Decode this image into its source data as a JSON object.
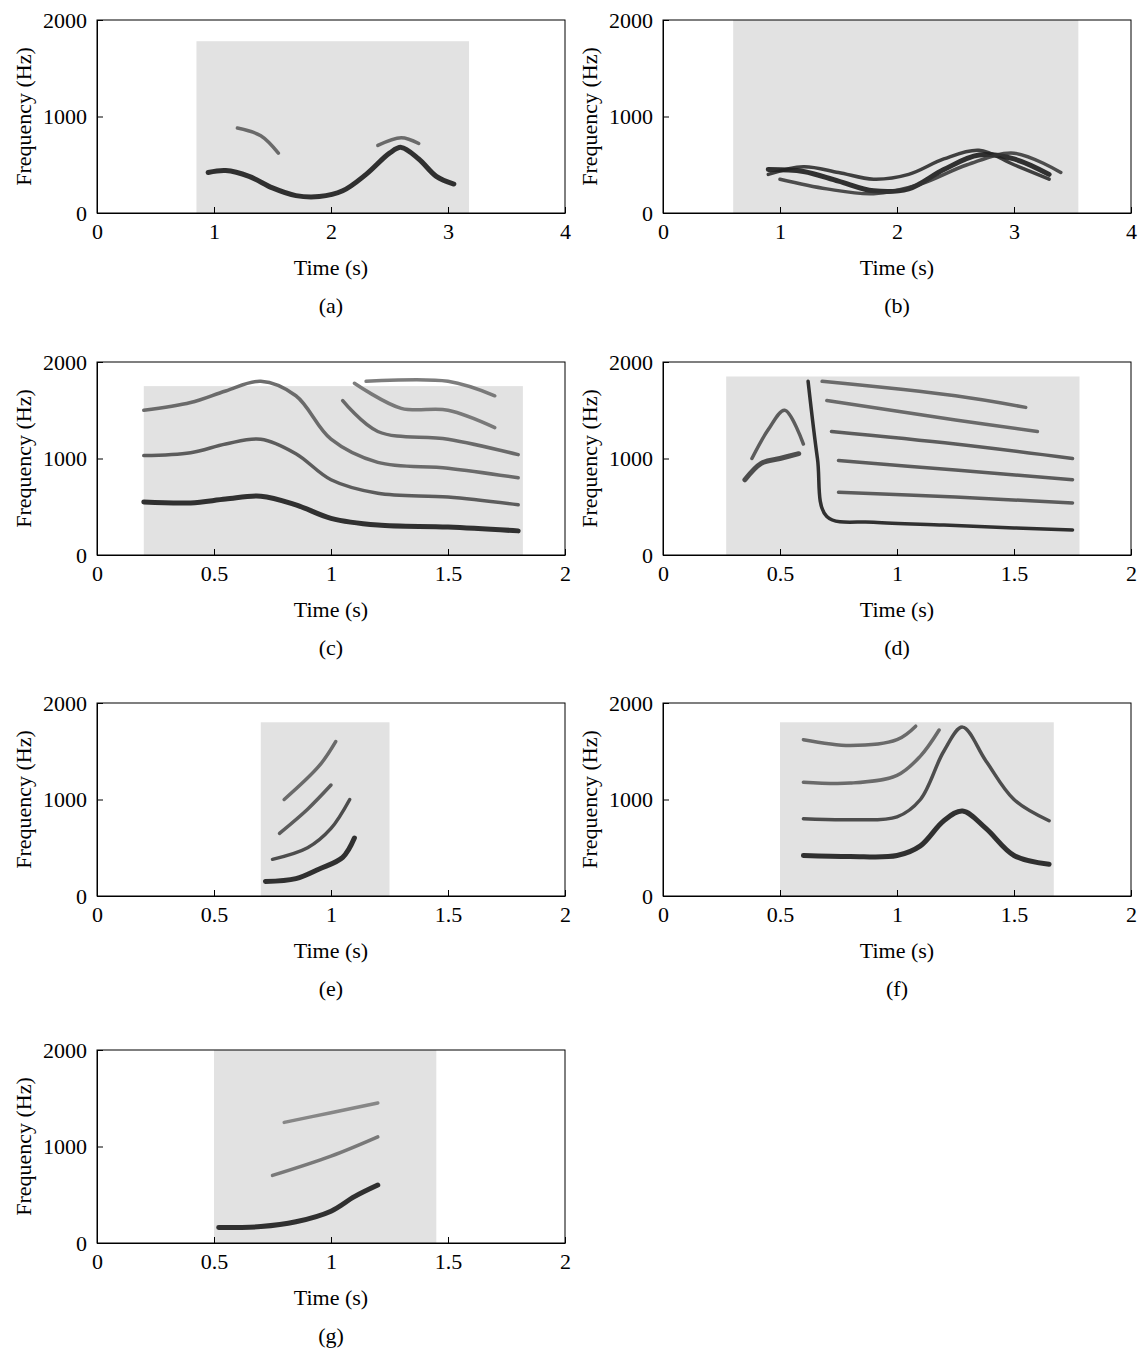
{
  "chart_data": [
    {
      "type": "spectrogram",
      "caption": "(a)",
      "x_label": "Time (s)",
      "y_label": "Frequency (Hz)",
      "xlim": [
        0,
        4
      ],
      "xticks": [
        0,
        1,
        2,
        3,
        4
      ],
      "ylim": [
        0,
        2000
      ],
      "yticks": [
        0,
        1000,
        2000
      ],
      "region": {
        "x": [
          0.85,
          3.18
        ],
        "y": [
          0,
          1780
        ]
      },
      "series": [
        {
          "color": "#111111",
          "x": [
            0.95,
            1.1,
            1.3,
            1.5,
            1.7,
            1.9,
            2.1,
            2.3,
            2.5,
            2.6,
            2.75,
            2.9,
            3.05
          ],
          "values": [
            420,
            440,
            380,
            260,
            180,
            170,
            230,
            400,
            620,
            680,
            560,
            380,
            300
          ]
        },
        {
          "color": "#555555",
          "x": [
            1.2,
            1.4,
            1.55
          ],
          "values": [
            880,
            800,
            620
          ]
        },
        {
          "color": "#555555",
          "x": [
            2.4,
            2.6,
            2.75
          ],
          "values": [
            700,
            780,
            720
          ]
        }
      ]
    },
    {
      "type": "spectrogram",
      "caption": "(b)",
      "x_label": "Time (s)",
      "y_label": "Frequency (Hz)",
      "xlim": [
        0,
        4
      ],
      "xticks": [
        0,
        1,
        2,
        3,
        4
      ],
      "ylim": [
        0,
        2000
      ],
      "yticks": [
        0,
        1000,
        2000
      ],
      "region": {
        "x": [
          0.6,
          3.55
        ],
        "y": [
          0,
          2000
        ]
      },
      "series": [
        {
          "color": "#111111",
          "x": [
            0.9,
            1.2,
            1.5,
            1.8,
            2.1,
            2.4,
            2.7,
            3.0,
            3.3
          ],
          "values": [
            450,
            430,
            330,
            230,
            250,
            450,
            600,
            560,
            400
          ]
        },
        {
          "color": "#222222",
          "x": [
            0.9,
            1.2,
            1.5,
            1.8,
            2.1,
            2.4,
            2.7,
            3.0,
            3.3
          ],
          "values": [
            400,
            480,
            420,
            350,
            400,
            560,
            650,
            500,
            350
          ]
        },
        {
          "color": "#333333",
          "x": [
            1.0,
            1.4,
            1.8,
            2.2,
            2.6,
            3.0,
            3.4
          ],
          "values": [
            350,
            250,
            200,
            300,
            500,
            620,
            420
          ]
        }
      ]
    },
    {
      "type": "spectrogram",
      "caption": "(c)",
      "x_label": "Time (s)",
      "y_label": "Frequency (Hz)",
      "xlim": [
        0,
        2
      ],
      "xticks": [
        0,
        0.5,
        1,
        1.5,
        2
      ],
      "ylim": [
        0,
        2000
      ],
      "yticks": [
        0,
        1000,
        2000
      ],
      "region": {
        "x": [
          0.2,
          1.82
        ],
        "y": [
          0,
          1750
        ]
      },
      "series": [
        {
          "color": "#111111",
          "x": [
            0.2,
            0.4,
            0.55,
            0.7,
            0.85,
            1.0,
            1.2,
            1.5,
            1.8
          ],
          "values": [
            550,
            540,
            580,
            610,
            520,
            380,
            310,
            290,
            250
          ]
        },
        {
          "color": "#444444",
          "x": [
            0.2,
            0.4,
            0.55,
            0.7,
            0.85,
            1.0,
            1.2,
            1.5,
            1.8
          ],
          "values": [
            1030,
            1060,
            1150,
            1200,
            1050,
            780,
            640,
            600,
            520
          ]
        },
        {
          "color": "#555555",
          "x": [
            0.2,
            0.4,
            0.55,
            0.7,
            0.85,
            1.0,
            1.2,
            1.5,
            1.8
          ],
          "values": [
            1500,
            1580,
            1700,
            1800,
            1650,
            1200,
            960,
            900,
            800
          ]
        },
        {
          "color": "#555555",
          "x": [
            1.05,
            1.2,
            1.5,
            1.8
          ],
          "values": [
            1600,
            1280,
            1200,
            1040
          ]
        },
        {
          "color": "#666666",
          "x": [
            1.1,
            1.3,
            1.5,
            1.7
          ],
          "values": [
            1780,
            1520,
            1500,
            1320
          ]
        },
        {
          "color": "#666666",
          "x": [
            1.15,
            1.5,
            1.7
          ],
          "values": [
            1800,
            1800,
            1650
          ]
        }
      ]
    },
    {
      "type": "spectrogram",
      "caption": "(d)",
      "x_label": "Time (s)",
      "y_label": "Frequency (Hz)",
      "xlim": [
        0,
        2
      ],
      "xticks": [
        0,
        0.5,
        1,
        1.5,
        2
      ],
      "ylim": [
        0,
        2000
      ],
      "yticks": [
        0,
        1000,
        2000
      ],
      "region": {
        "x": [
          0.27,
          1.78
        ],
        "y": [
          0,
          1850
        ]
      },
      "series": [
        {
          "color": "#333333",
          "x": [
            0.35,
            0.42,
            0.5,
            0.58
          ],
          "values": [
            780,
            950,
            1000,
            1050
          ]
        },
        {
          "color": "#444444",
          "x": [
            0.38,
            0.45,
            0.52,
            0.6
          ],
          "values": [
            1000,
            1300,
            1500,
            1150
          ]
        },
        {
          "color": "#111111",
          "x": [
            0.62,
            0.66,
            0.7,
            0.9,
            1.2,
            1.5,
            1.75
          ],
          "values": [
            1800,
            1000,
            400,
            340,
            310,
            280,
            260
          ]
        },
        {
          "color": "#444444",
          "x": [
            0.75,
            1.25,
            1.75
          ],
          "values": [
            650,
            600,
            540
          ]
        },
        {
          "color": "#444444",
          "x": [
            0.75,
            1.25,
            1.75
          ],
          "values": [
            980,
            880,
            780
          ]
        },
        {
          "color": "#444444",
          "x": [
            0.72,
            1.25,
            1.75
          ],
          "values": [
            1280,
            1150,
            1000
          ]
        },
        {
          "color": "#555555",
          "x": [
            0.7,
            1.25,
            1.6
          ],
          "values": [
            1600,
            1400,
            1280
          ]
        },
        {
          "color": "#555555",
          "x": [
            0.68,
            1.25,
            1.55
          ],
          "values": [
            1800,
            1650,
            1530
          ]
        }
      ]
    },
    {
      "type": "spectrogram",
      "caption": "(e)",
      "x_label": "Time (s)",
      "y_label": "Frequency (Hz)",
      "xlim": [
        0,
        2
      ],
      "xticks": [
        0,
        0.5,
        1,
        1.5,
        2
      ],
      "ylim": [
        0,
        2000
      ],
      "yticks": [
        0,
        1000,
        2000
      ],
      "region": {
        "x": [
          0.7,
          1.25
        ],
        "y": [
          0,
          1800
        ]
      },
      "series": [
        {
          "color": "#111111",
          "x": [
            0.72,
            0.85,
            0.95,
            1.05,
            1.1
          ],
          "values": [
            150,
            180,
            280,
            400,
            600
          ]
        },
        {
          "color": "#333333",
          "x": [
            0.75,
            0.9,
            1.0,
            1.08
          ],
          "values": [
            380,
            500,
            700,
            1000
          ]
        },
        {
          "color": "#444444",
          "x": [
            0.78,
            0.9,
            1.0
          ],
          "values": [
            650,
            900,
            1150
          ]
        },
        {
          "color": "#555555",
          "x": [
            0.8,
            0.95,
            1.02
          ],
          "values": [
            1000,
            1350,
            1600
          ]
        }
      ]
    },
    {
      "type": "spectrogram",
      "caption": "(f)",
      "x_label": "Time (s)",
      "y_label": "Frequency (Hz)",
      "xlim": [
        0,
        2
      ],
      "xticks": [
        0,
        0.5,
        1,
        1.5,
        2
      ],
      "ylim": [
        0,
        2000
      ],
      "yticks": [
        0,
        1000,
        2000
      ],
      "region": {
        "x": [
          0.5,
          1.67
        ],
        "y": [
          0,
          1800
        ]
      },
      "series": [
        {
          "color": "#111111",
          "x": [
            0.6,
            0.8,
            1.0,
            1.1,
            1.2,
            1.28,
            1.38,
            1.5,
            1.65
          ],
          "values": [
            420,
            410,
            420,
            520,
            780,
            880,
            700,
            420,
            330
          ]
        },
        {
          "color": "#333333",
          "x": [
            0.6,
            0.8,
            1.0,
            1.1,
            1.2,
            1.28,
            1.38,
            1.5,
            1.65
          ],
          "values": [
            800,
            790,
            820,
            1000,
            1500,
            1750,
            1400,
            1000,
            780
          ]
        },
        {
          "color": "#555555",
          "x": [
            0.6,
            0.8,
            1.0,
            1.1,
            1.18
          ],
          "values": [
            1180,
            1170,
            1250,
            1450,
            1720
          ]
        },
        {
          "color": "#555555",
          "x": [
            0.6,
            0.8,
            1.0,
            1.08
          ],
          "values": [
            1620,
            1560,
            1620,
            1760
          ]
        }
      ]
    },
    {
      "type": "spectrogram",
      "caption": "(g)",
      "x_label": "Time (s)",
      "y_label": "Frequency (Hz)",
      "xlim": [
        0,
        2
      ],
      "xticks": [
        0,
        0.5,
        1,
        1.5,
        2
      ],
      "ylim": [
        0,
        2000
      ],
      "yticks": [
        0,
        1000,
        2000
      ],
      "region": {
        "x": [
          0.5,
          1.45
        ],
        "y": [
          0,
          2000
        ]
      },
      "series": [
        {
          "color": "#111111",
          "x": [
            0.52,
            0.7,
            0.85,
            1.0,
            1.1,
            1.2
          ],
          "values": [
            160,
            170,
            220,
            330,
            480,
            600
          ]
        },
        {
          "color": "#666666",
          "x": [
            0.75,
            1.0,
            1.2
          ],
          "values": [
            700,
            900,
            1100
          ]
        },
        {
          "color": "#777777",
          "x": [
            0.8,
            1.0,
            1.2
          ],
          "values": [
            1250,
            1350,
            1450
          ]
        }
      ]
    }
  ]
}
